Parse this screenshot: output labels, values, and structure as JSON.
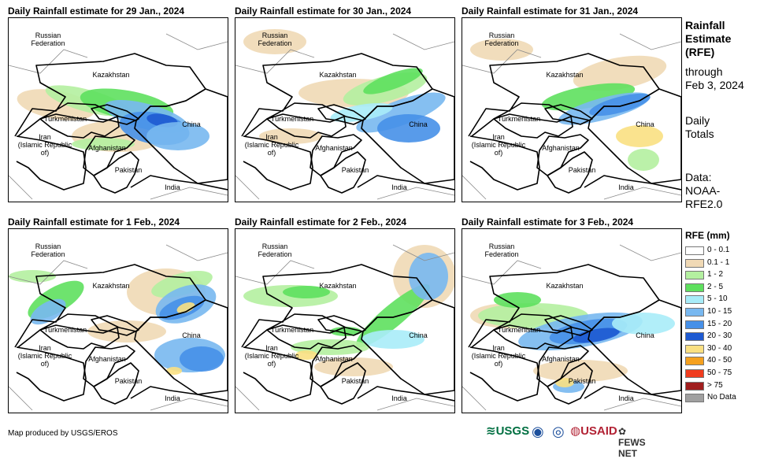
{
  "panels": [
    {
      "title": "Daily Rainfall estimate for 29 Jan., 2024"
    },
    {
      "title": "Daily Rainfall estimate for 30 Jan., 2024"
    },
    {
      "title": "Daily Rainfall estimate for 31 Jan., 2024"
    },
    {
      "title": "Daily Rainfall estimate for 1 Feb., 2024"
    },
    {
      "title": "Daily Rainfall estimate for 2 Feb., 2024"
    },
    {
      "title": "Daily Rainfall estimate for 3 Feb., 2024"
    }
  ],
  "map_labels": {
    "russia": "Russian\nFederation",
    "kazakhstan": "Kazakhstan",
    "turkmenistan": "Turkmenistan",
    "iran": "Iran\n(Islamic Republic of)",
    "afghanistan": "Afghanistan",
    "pakistan": "Pakistan",
    "china": "China",
    "india": "India"
  },
  "side_info": {
    "heading": "Rainfall\nEstimate\n(RFE)",
    "through": "through\nFeb 3, 2024",
    "totals": "Daily\nTotals",
    "data": "Data:\nNOAA-\nRFE2.0"
  },
  "legend": {
    "title": "RFE (mm)",
    "items": [
      {
        "label": "0 - 0.1",
        "color": "#ffffff"
      },
      {
        "label": "0.1 - 1",
        "color": "#f0d9b5"
      },
      {
        "label": "1 - 2",
        "color": "#b4f0a0"
      },
      {
        "label": "2 - 5",
        "color": "#5ee05e"
      },
      {
        "label": "5 - 10",
        "color": "#a8ecf8"
      },
      {
        "label": "10 - 15",
        "color": "#78b8f0"
      },
      {
        "label": "15 - 20",
        "color": "#4690e8"
      },
      {
        "label": "20 - 30",
        "color": "#1e5ad2"
      },
      {
        "label": "30 - 40",
        "color": "#fae082"
      },
      {
        "label": "40 - 50",
        "color": "#f5a01e"
      },
      {
        "label": "50 - 75",
        "color": "#f03c1e"
      },
      {
        "label": "> 75",
        "color": "#a01e1e"
      },
      {
        "label": "No Data",
        "color": "#a0a0a0"
      }
    ]
  },
  "footer": {
    "credit": "Map produced by USGS/EROS",
    "logos": [
      {
        "name": "USGS",
        "text": "≋USGS"
      },
      {
        "name": "NOAA",
        "text": "◉"
      },
      {
        "name": "DHS",
        "text": "◎"
      },
      {
        "name": "USAID",
        "text": "◍USAID"
      },
      {
        "name": "FEWS NET",
        "text": "✿ FEWS NET"
      }
    ]
  }
}
